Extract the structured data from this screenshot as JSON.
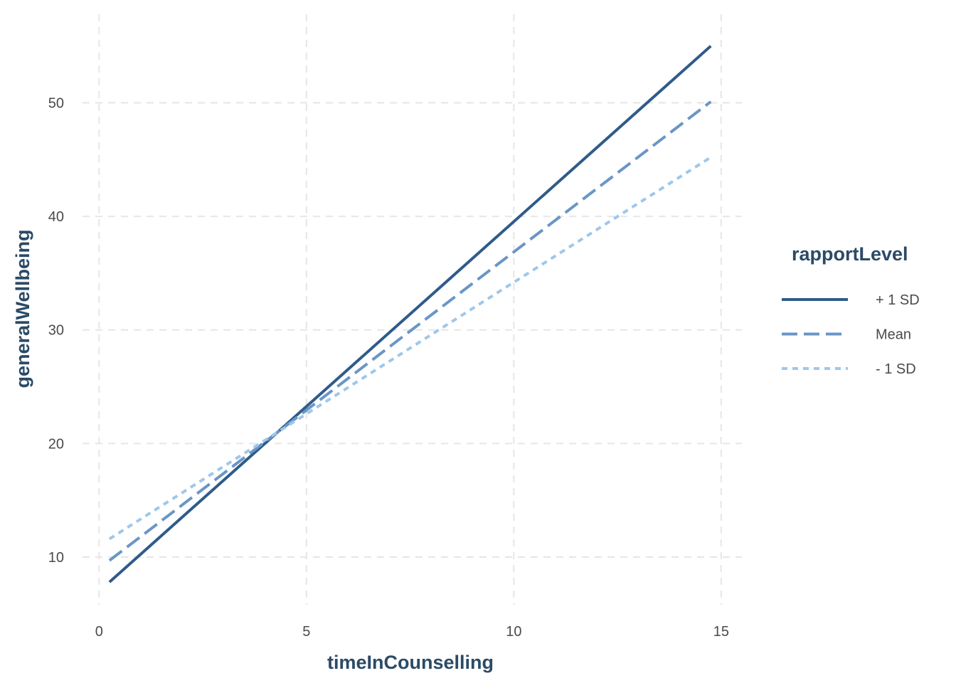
{
  "chart_data": {
    "type": "line",
    "title": "",
    "xlabel": "timeInCounselling",
    "ylabel": "generalWellbeing",
    "xlim": [
      -0.4,
      15.5
    ],
    "ylim": [
      5.8,
      57.8
    ],
    "xticks": [
      0,
      5,
      10,
      15
    ],
    "yticks": [
      10,
      20,
      30,
      40,
      50
    ],
    "grid": true,
    "legend": {
      "title": "rapportLevel",
      "position": "right"
    },
    "series": [
      {
        "name": "+ 1 SD",
        "x": [
          0.25,
          14.75
        ],
        "y": [
          7.8,
          55.0
        ],
        "color": "#2f5b8a",
        "dash": "solid"
      },
      {
        "name": "Mean",
        "x": [
          0.25,
          14.75
        ],
        "y": [
          9.7,
          50.1
        ],
        "color": "#6a96c6",
        "dash": "dashed"
      },
      {
        "name": "- 1 SD",
        "x": [
          0.25,
          14.75
        ],
        "y": [
          11.6,
          45.2
        ],
        "color": "#9fc7ea",
        "dash": "dotted"
      }
    ]
  }
}
